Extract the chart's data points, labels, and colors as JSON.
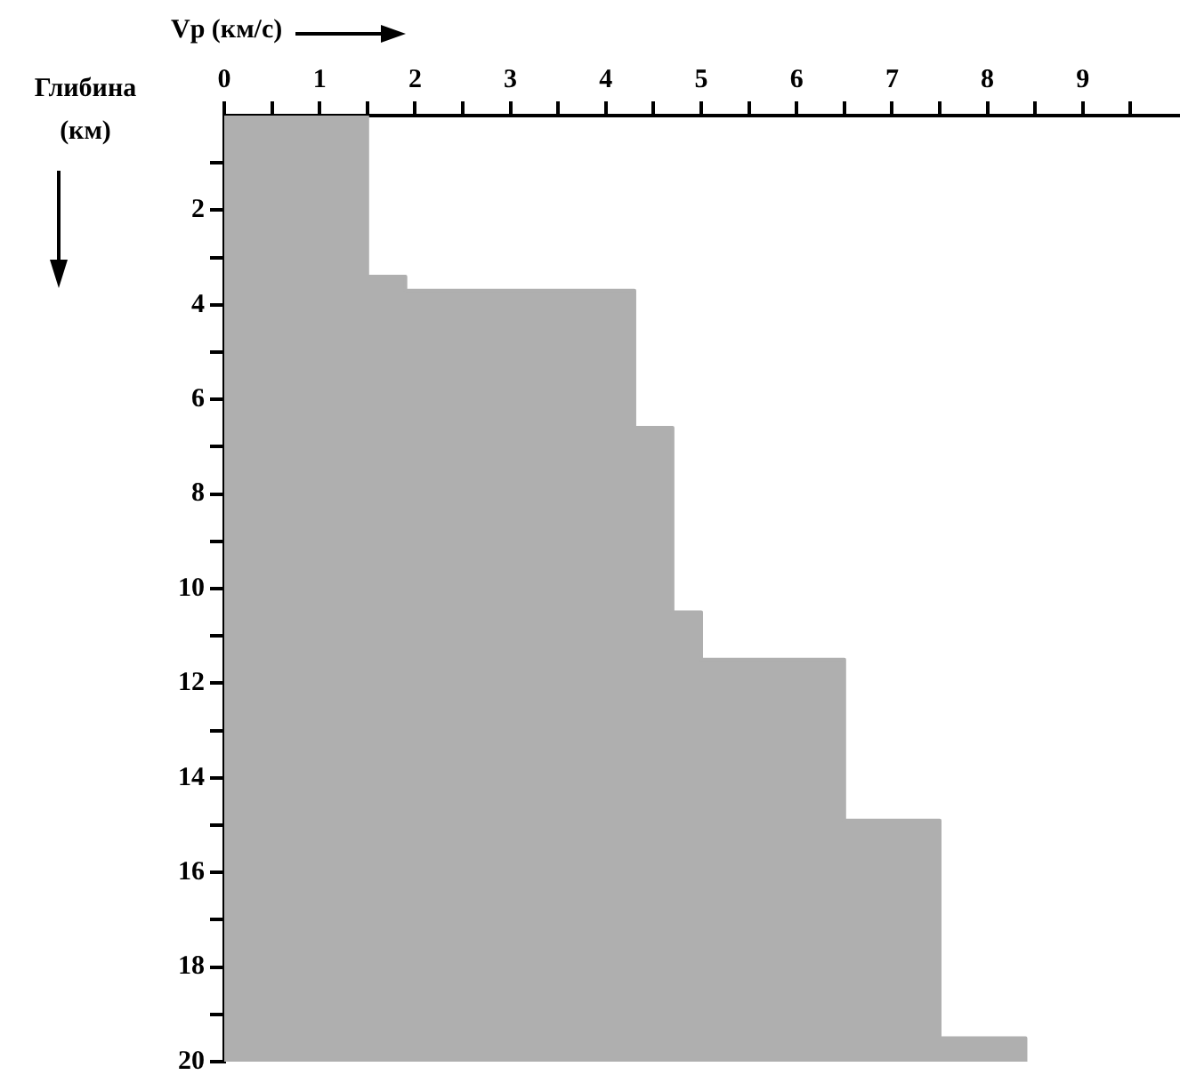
{
  "chart_data": {
    "type": "area",
    "xlabel": "Vp (км/с)",
    "ylabel": "Глибина (км)",
    "series": [
      {
        "color": "#afafaf",
        "x": [
          0,
          0,
          1.5,
          1.5,
          1.9,
          1.9,
          4.3,
          4.3,
          4.7,
          4.7,
          5.0,
          5.0,
          6.5,
          6.5,
          7.5,
          7.5,
          8.4,
          8.4
        ],
        "values": [
          20,
          0,
          0,
          3.4,
          3.4,
          3.7,
          3.7,
          6.6,
          6.6,
          10.5,
          10.5,
          11.5,
          11.5,
          14.9,
          14.9,
          19.5,
          19.5,
          20
        ]
      }
    ],
    "xlim": [
      0,
      10
    ],
    "xticks": [
      0,
      {
        "value": 0.5,
        "label": null
      },
      1,
      {
        "value": 1.5,
        "label": null
      },
      2,
      {
        "value": 2.5,
        "label": null
      },
      3,
      {
        "value": 3.5,
        "label": null
      },
      4,
      {
        "value": 4.5,
        "label": null
      },
      5,
      {
        "value": 5.5,
        "label": null
      },
      6,
      {
        "value": 6.5,
        "label": null
      },
      7,
      {
        "value": 7.5,
        "label": null
      },
      8,
      {
        "value": 8.5,
        "label": null
      },
      9,
      {
        "value": 9.5,
        "label": null
      }
    ],
    "ylim": [
      20,
      0
    ],
    "yticks": [
      {
        "value": 1,
        "label": null
      },
      2,
      {
        "value": 3,
        "label": null
      },
      4,
      {
        "value": 5,
        "label": null
      },
      6,
      {
        "value": 7,
        "label": null
      },
      8,
      {
        "value": 9,
        "label": null
      },
      10,
      {
        "value": 11,
        "label": null
      },
      12,
      {
        "value": 13,
        "label": null
      },
      14,
      {
        "value": 15,
        "label": null
      },
      16,
      {
        "value": 17,
        "label": null
      },
      18,
      {
        "value": 19,
        "label": null
      },
      20
    ],
    "grid": false,
    "legend": false
  }
}
